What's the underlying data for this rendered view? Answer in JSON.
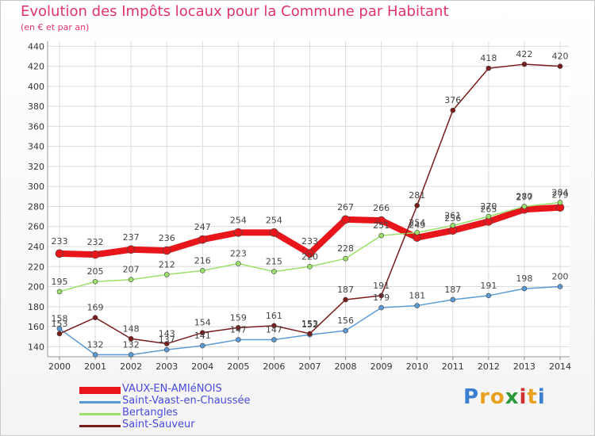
{
  "title": "Evolution des Impôts locaux pour la Commune par Habitant",
  "subtitle": "(en € et par an)",
  "logo": {
    "letters": [
      "P",
      "r",
      "o",
      "x",
      "i",
      "t",
      "i"
    ],
    "colors": [
      "#3a7fd0",
      "#e8a020",
      "#e8a020",
      "#2a9a3a",
      "#d03030",
      "#e8a020",
      "#3a7fd0"
    ]
  },
  "chart_data": {
    "type": "line",
    "x": [
      "2000",
      "2001",
      "2002",
      "2003",
      "2004",
      "2005",
      "2006",
      "2007",
      "2008",
      "2009",
      "2010",
      "2011",
      "2012",
      "2013",
      "2014"
    ],
    "ylim": [
      130,
      445
    ],
    "yticks": [
      140,
      160,
      180,
      200,
      220,
      240,
      260,
      280,
      300,
      320,
      340,
      360,
      380,
      400,
      420,
      440
    ],
    "grid": true,
    "legend_position": "bottom-left",
    "series": [
      {
        "name": "VAUX-EN-AMIéNOIS",
        "color": "#e8161b",
        "width": 8,
        "values": [
          233,
          232,
          237,
          236,
          247,
          254,
          254,
          233,
          267,
          266,
          249,
          256,
          265,
          277,
          279
        ],
        "labels": [
          "233",
          "232",
          "237",
          "236",
          "247",
          "254",
          "254",
          "233",
          "267",
          "266",
          "249",
          "256",
          "265",
          "277",
          "279"
        ]
      },
      {
        "name": "Saint-Vaast-en-Chaussée",
        "color": "#5b9bd5",
        "width": 1.5,
        "values": [
          158,
          132,
          132,
          137,
          141,
          147,
          147,
          152,
          156,
          179,
          181,
          187,
          191,
          198,
          200
        ],
        "labels": [
          "158",
          "132",
          "132",
          "137",
          "141",
          "147",
          "147",
          "152",
          "156",
          "179",
          "181",
          "187",
          "191",
          "198",
          "200"
        ]
      },
      {
        "name": "Bertangles",
        "color": "#9be06a",
        "width": 1.5,
        "values": [
          195,
          205,
          207,
          212,
          216,
          223,
          215,
          220,
          228,
          251,
          254,
          261,
          270,
          280,
          284
        ],
        "labels": [
          "195",
          "205",
          "207",
          "212",
          "216",
          "223",
          "215",
          "220",
          "228",
          "251",
          "254",
          "261",
          "270",
          "280",
          "284"
        ]
      },
      {
        "name": "Saint-Sauveur",
        "color": "#7a1c1c",
        "width": 1.5,
        "values": [
          153,
          169,
          148,
          143,
          154,
          159,
          161,
          153,
          187,
          191,
          281,
          376,
          418,
          422,
          420
        ],
        "labels": [
          "153",
          "169",
          "148",
          "143",
          "154",
          "159",
          "161",
          "153",
          "187",
          "191",
          "281",
          "376",
          "418",
          "422",
          "420"
        ]
      }
    ]
  }
}
